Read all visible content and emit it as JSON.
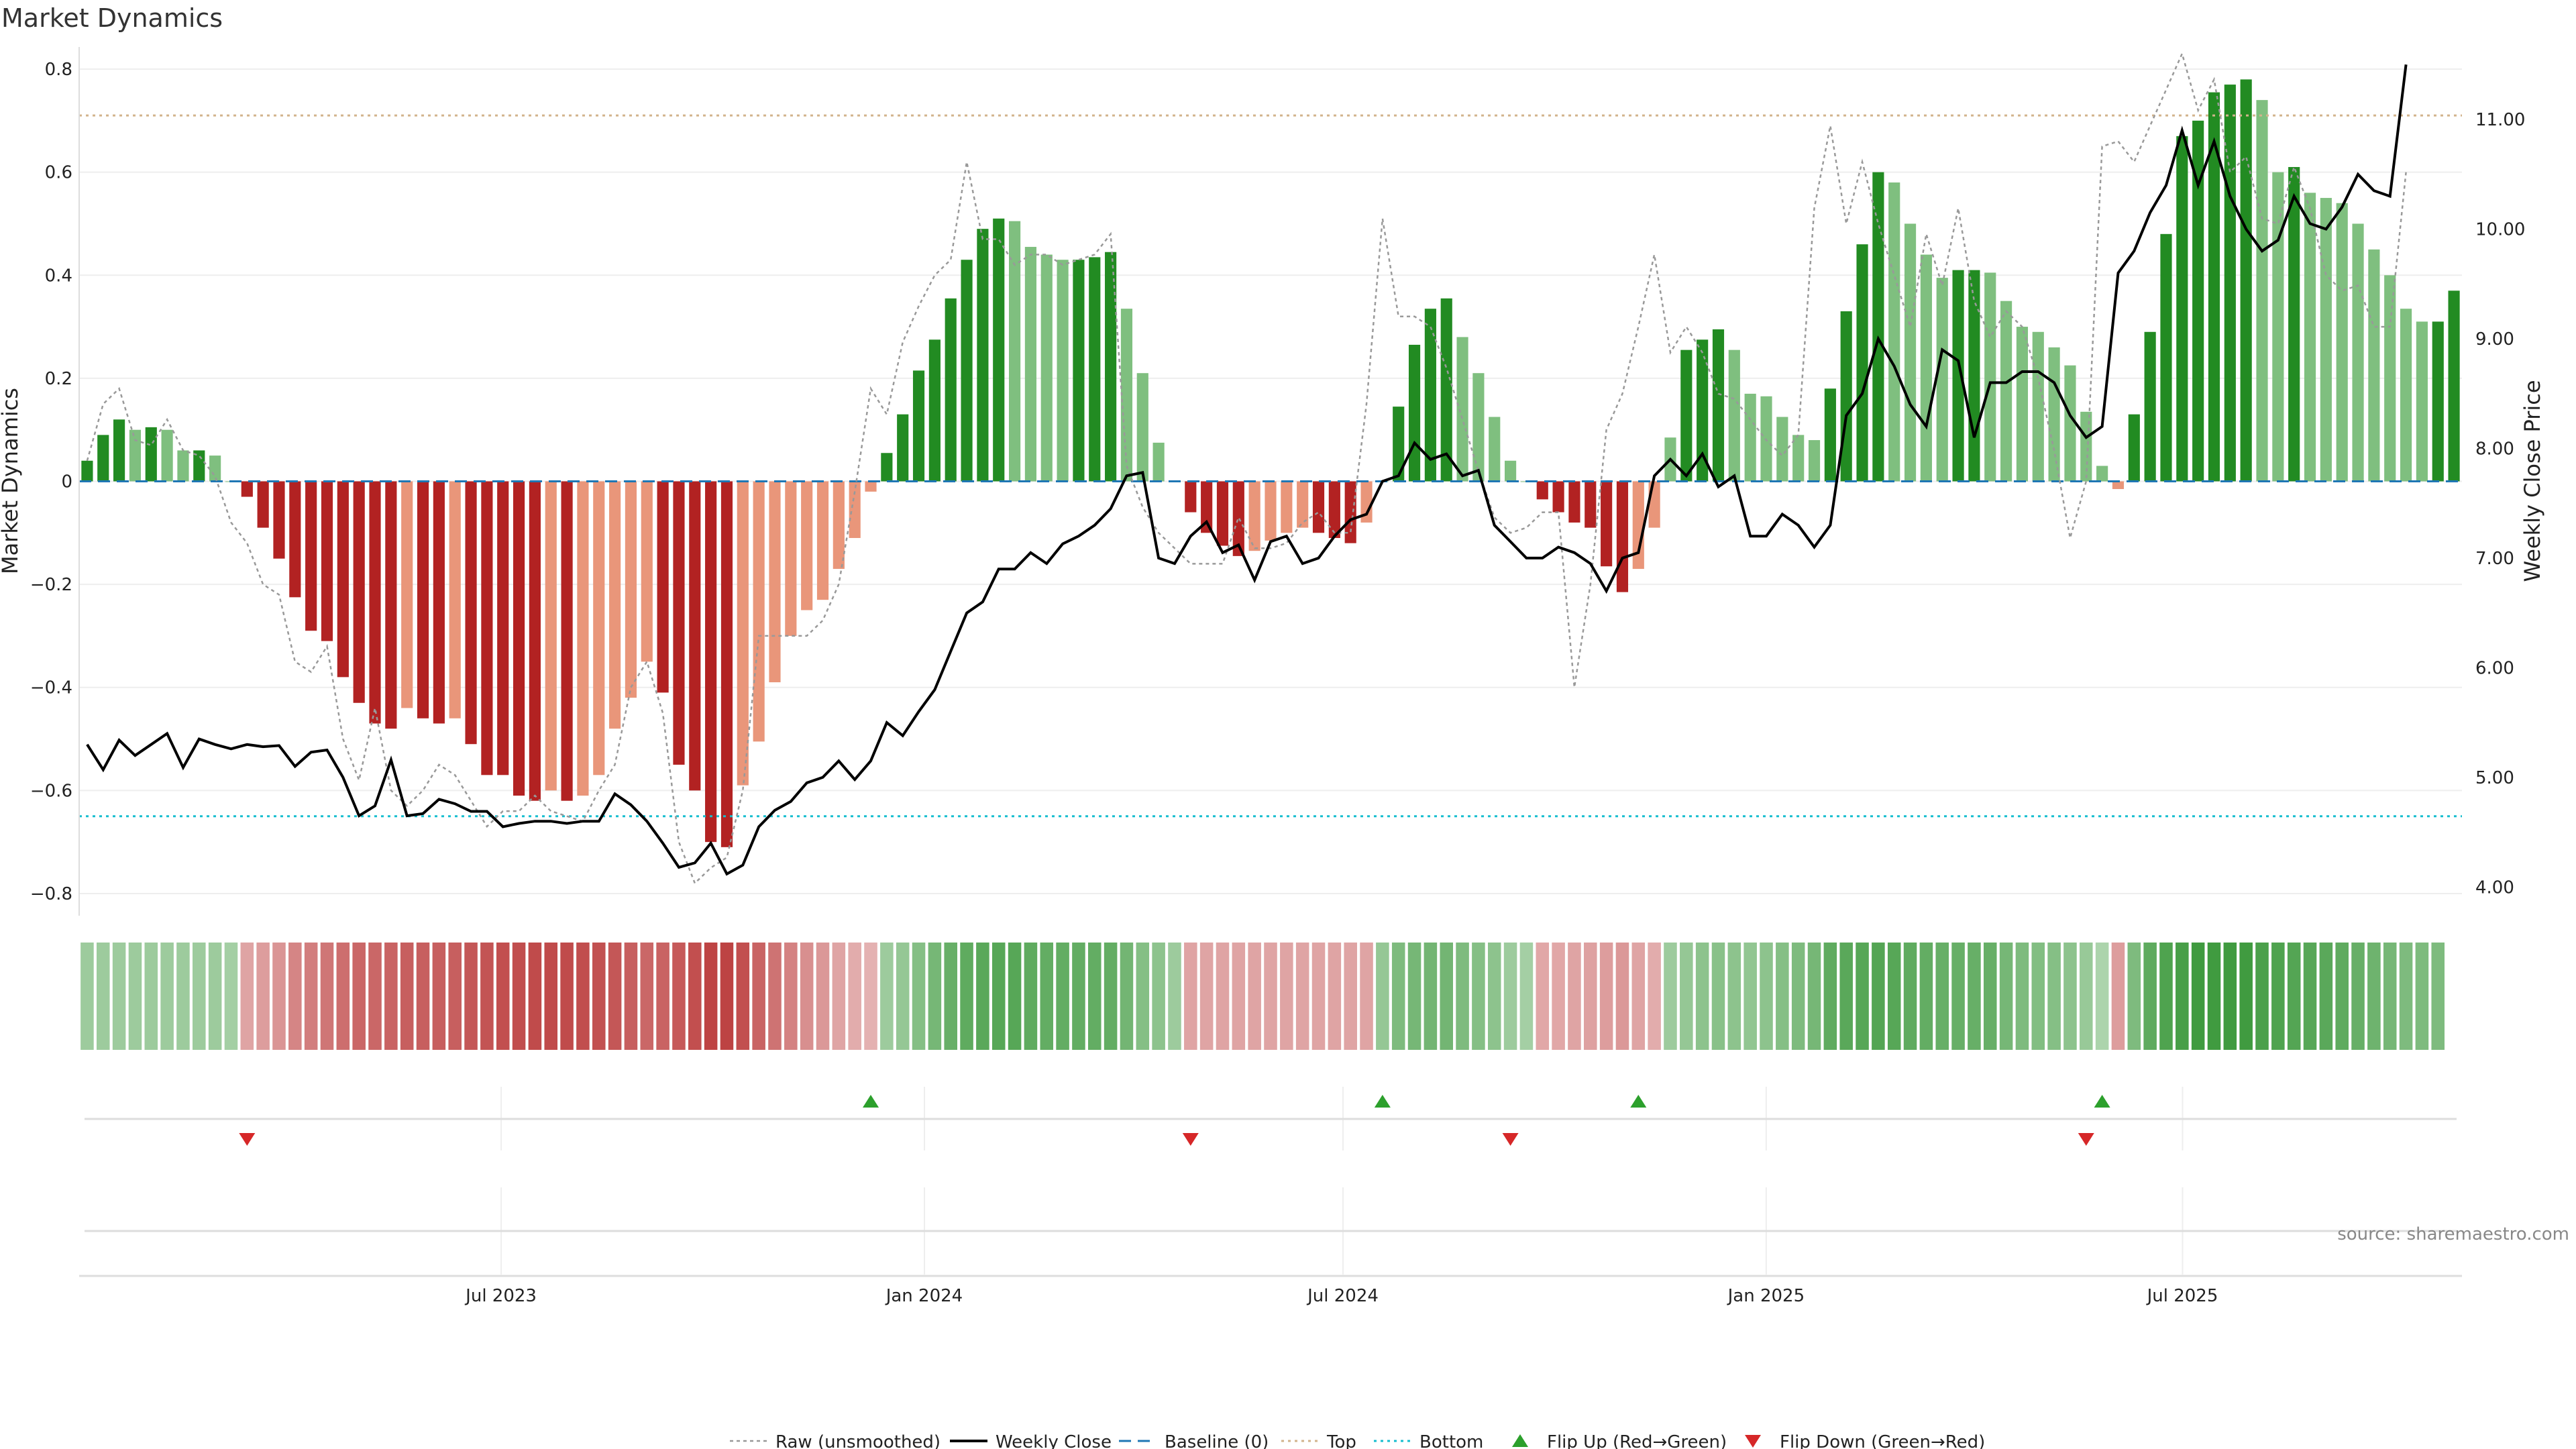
{
  "title": "Market Dynamics",
  "source": "source: sharemaestro.com",
  "colors": {
    "strong_green": "#228b22",
    "light_green": "#7fbf7f",
    "strong_red": "#b22222",
    "light_red": "#e9967a",
    "weekly_close": "#000000",
    "raw": "#999999",
    "baseline": "#1f77b4",
    "top": "#d2b48c",
    "bottom": "#17becf",
    "flip_up": "#2ca02c",
    "flip_down": "#d62728"
  },
  "chart_data": {
    "type": "bar",
    "title": "Market Dynamics",
    "ylabel": "Market Dynamics",
    "y2label": "Weekly Close Price",
    "ylim": [
      -0.83,
      0.83
    ],
    "y2lim": [
      3.8,
      11.6
    ],
    "yticks": [
      "0.8",
      "0.6",
      "0.4",
      "0.2",
      "0",
      "−0.2",
      "−0.4",
      "−0.6",
      "−0.8"
    ],
    "yticks_values": [
      0.8,
      0.6,
      0.4,
      0.2,
      0,
      -0.2,
      -0.4,
      -0.6,
      -0.8
    ],
    "y2ticks": [
      "11.00",
      "10.00",
      "9.00",
      "8.00",
      "7.00",
      "6.00",
      "5.00",
      "4.00"
    ],
    "y2ticks_values": [
      11,
      10,
      9,
      8,
      7,
      6,
      5,
      4
    ],
    "x_start": "2023-01-02",
    "x_end": "2025-10-27",
    "xticks": [
      "Jul 2023",
      "Jan 2024",
      "Jul 2024",
      "Jan 2025",
      "Jul 2025"
    ],
    "xticks_dates": [
      "2023-07-01",
      "2024-01-01",
      "2024-07-01",
      "2025-01-01",
      "2025-07-01"
    ],
    "top_line": 0.71,
    "bottom_line": -0.65,
    "baseline": 0,
    "grid": true,
    "legend_position": "bottom-center",
    "legend": [
      "Raw (unsmoothed)",
      "Weekly Close",
      "Baseline (0)",
      "Top",
      "Bottom",
      "Flip Up (Red→Green)",
      "Flip Down (Green→Red)"
    ],
    "values": [
      0.04,
      0.09,
      0.12,
      0.1,
      0.105,
      0.1,
      0.06,
      0.06,
      0.05,
      0,
      -0.03,
      -0.09,
      -0.15,
      -0.225,
      -0.29,
      -0.31,
      -0.38,
      -0.43,
      -0.47,
      -0.48,
      -0.44,
      -0.46,
      -0.47,
      -0.46,
      -0.51,
      -0.57,
      -0.57,
      -0.61,
      -0.62,
      -0.6,
      -0.62,
      -0.61,
      -0.57,
      -0.48,
      -0.42,
      -0.35,
      -0.41,
      -0.55,
      -0.6,
      -0.7,
      -0.71,
      -0.59,
      -0.505,
      -0.39,
      -0.3,
      -0.25,
      -0.23,
      -0.17,
      -0.11,
      -0.02,
      0.055,
      0.13,
      0.215,
      0.275,
      0.355,
      0.43,
      0.49,
      0.51,
      0.505,
      0.455,
      0.44,
      0.43,
      0.43,
      0.435,
      0.445,
      0.335,
      0.21,
      0.075,
      0,
      -0.06,
      -0.1,
      -0.125,
      -0.145,
      -0.135,
      -0.115,
      -0.1,
      -0.09,
      -0.1,
      -0.11,
      -0.12,
      -0.08,
      0,
      0.145,
      0.265,
      0.335,
      0.355,
      0.28,
      0.21,
      0.125,
      0.04,
      0,
      -0.035,
      -0.06,
      -0.08,
      -0.09,
      -0.165,
      -0.215,
      -0.17,
      -0.09,
      0.085,
      0.255,
      0.275,
      0.295,
      0.255,
      0.17,
      0.165,
      0.125,
      0.09,
      0.08,
      0.18,
      0.33,
      0.46,
      0.6,
      0.58,
      0.5,
      0.44,
      0.395,
      0.41,
      0.41,
      0.405,
      0.35,
      0.3,
      0.29,
      0.26,
      0.225,
      0.135,
      0.03,
      -0.015,
      0.13,
      0.29,
      0.48,
      0.67,
      0.7,
      0.755,
      0.77,
      0.78,
      0.74,
      0.6,
      0.61,
      0.56,
      0.55,
      0.54,
      0.5,
      0.45,
      0.4,
      0.335,
      0.31,
      0.31,
      0.37
    ],
    "raw": [
      0.04,
      0.15,
      0.18,
      0.08,
      0.07,
      0.12,
      0.06,
      0.05,
      0.01,
      -0.08,
      -0.12,
      -0.2,
      -0.22,
      -0.35,
      -0.37,
      -0.32,
      -0.5,
      -0.58,
      -0.44,
      -0.6,
      -0.63,
      -0.6,
      -0.55,
      -0.57,
      -0.62,
      -0.67,
      -0.64,
      -0.64,
      -0.61,
      -0.64,
      -0.65,
      -0.66,
      -0.6,
      -0.55,
      -0.4,
      -0.35,
      -0.45,
      -0.7,
      -0.78,
      -0.75,
      -0.73,
      -0.6,
      -0.3,
      -0.3,
      -0.3,
      -0.3,
      -0.27,
      -0.2,
      -0.02,
      0.18,
      0.13,
      0.27,
      0.34,
      0.4,
      0.43,
      0.62,
      0.47,
      0.47,
      0.42,
      0.44,
      0.44,
      0.42,
      0.43,
      0.44,
      0.48,
      0.03,
      -0.05,
      -0.1,
      -0.13,
      -0.16,
      -0.16,
      -0.16,
      -0.07,
      -0.13,
      -0.13,
      -0.12,
      -0.08,
      -0.06,
      -0.1,
      -0.1,
      0.15,
      0.51,
      0.32,
      0.32,
      0.3,
      0.22,
      0.12,
      0.02,
      -0.07,
      -0.1,
      -0.09,
      -0.06,
      -0.06,
      -0.4,
      -0.2,
      0.1,
      0.17,
      0.3,
      0.44,
      0.25,
      0.3,
      0.25,
      0.17,
      0.16,
      0.12,
      0.08,
      0.05,
      0.09,
      0.53,
      0.69,
      0.5,
      0.62,
      0.5,
      0.4,
      0.3,
      0.48,
      0.38,
      0.53,
      0.35,
      0.28,
      0.33,
      0.3,
      0.2,
      0.06,
      -0.11,
      0,
      0.65,
      0.66,
      0.62,
      0.69,
      0.76,
      0.83,
      0.72,
      0.78,
      0.6,
      0.63,
      0.51,
      0.5,
      0.61,
      0.53,
      0.4,
      0.37,
      0.38,
      0.3,
      0.3,
      0.6
    ],
    "weekly_close": [
      5.3,
      5.07,
      5.34,
      5.2,
      5.3,
      5.4,
      5.09,
      5.35,
      5.3,
      5.26,
      5.3,
      5.28,
      5.29,
      5.1,
      5.23,
      5.25,
      5,
      4.65,
      4.74,
      5.16,
      4.65,
      4.67,
      4.8,
      4.76,
      4.69,
      4.69,
      4.55,
      4.58,
      4.6,
      4.6,
      4.58,
      4.6,
      4.6,
      4.85,
      4.75,
      4.6,
      4.4,
      4.18,
      4.22,
      4.4,
      4.12,
      4.2,
      4.55,
      4.7,
      4.78,
      4.95,
      5.0,
      5.15,
      4.98,
      5.15,
      5.5,
      5.38,
      5.6,
      5.8,
      6.15,
      6.5,
      6.6,
      6.9,
      6.9,
      7.05,
      6.95,
      7.13,
      7.2,
      7.3,
      7.45,
      7.75,
      7.78,
      7.0,
      6.95,
      7.2,
      7.33,
      7.05,
      7.12,
      6.8,
      7.15,
      7.2,
      6.95,
      7.0,
      7.2,
      7.35,
      7.4,
      7.7,
      7.75,
      8.05,
      7.9,
      7.95,
      7.75,
      7.8,
      7.3,
      7.15,
      7.0,
      7.0,
      7.1,
      7.05,
      6.95,
      6.7,
      7.0,
      7.05,
      7.75,
      7.9,
      7.75,
      7.95,
      7.65,
      7.75,
      7.2,
      7.2,
      7.4,
      7.3,
      7.1,
      7.3,
      8.3,
      8.5,
      9,
      8.75,
      8.4,
      8.2,
      8.9,
      8.8,
      8.1,
      8.6,
      8.6,
      8.7,
      8.7,
      8.6,
      8.3,
      8.1,
      8.2,
      9.6,
      9.8,
      10.15,
      10.4,
      10.9,
      10.4,
      10.8,
      10.3,
      10.0,
      9.8,
      9.9,
      10.3,
      10.05,
      10.0,
      10.2,
      10.5,
      10.35,
      10.3,
      11.5
    ],
    "regime_strength": [
      0.35,
      0.35,
      0.35,
      0.35,
      0.35,
      0.35,
      0.35,
      0.35,
      0.35,
      0.3,
      0.3,
      0.35,
      0.4,
      0.5,
      0.55,
      0.6,
      0.65,
      0.7,
      0.7,
      0.72,
      0.75,
      0.75,
      0.75,
      0.75,
      0.8,
      0.82,
      0.85,
      0.86,
      0.88,
      0.88,
      0.88,
      0.86,
      0.84,
      0.8,
      0.75,
      0.7,
      0.72,
      0.78,
      0.85,
      0.92,
      0.93,
      0.85,
      0.72,
      0.62,
      0.52,
      0.44,
      0.38,
      0.3,
      0.25,
      0.22,
      0.35,
      0.4,
      0.5,
      0.6,
      0.7,
      0.75,
      0.78,
      0.8,
      0.8,
      0.75,
      0.72,
      0.72,
      0.72,
      0.72,
      0.72,
      0.62,
      0.5,
      0.45,
      0.35,
      0.3,
      0.3,
      0.3,
      0.3,
      0.3,
      0.3,
      0.3,
      0.3,
      0.3,
      0.3,
      0.3,
      0.3,
      0.4,
      0.55,
      0.6,
      0.62,
      0.62,
      0.55,
      0.5,
      0.45,
      0.35,
      0.3,
      0.28,
      0.28,
      0.3,
      0.32,
      0.35,
      0.38,
      0.3,
      0.25,
      0.35,
      0.4,
      0.45,
      0.48,
      0.45,
      0.42,
      0.45,
      0.5,
      0.55,
      0.6,
      0.75,
      0.78,
      0.8,
      0.82,
      0.8,
      0.75,
      0.72,
      0.7,
      0.7,
      0.7,
      0.7,
      0.6,
      0.55,
      0.52,
      0.5,
      0.45,
      0.38,
      0.25,
      0.35,
      0.55,
      0.75,
      0.85,
      0.9,
      0.95,
      0.95,
      0.95,
      0.95,
      0.88,
      0.85,
      0.82,
      0.8,
      0.78,
      0.75,
      0.7,
      0.65,
      0.6,
      0.55,
      0.55,
      0.55
    ],
    "flip_up_indices": [
      49,
      81,
      97,
      126
    ],
    "flip_down_indices": [
      10,
      69,
      89,
      125
    ]
  }
}
